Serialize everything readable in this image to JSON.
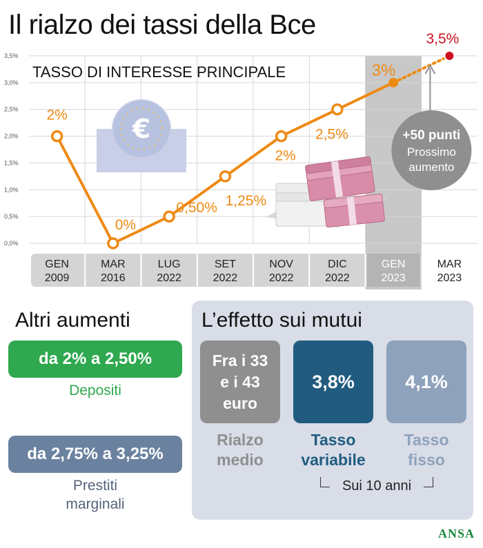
{
  "title": "Il rialzo dei tassi della Bce",
  "chart_data": {
    "type": "line",
    "subtitle": "TASSO DI INTERESSE PRINCIPALE",
    "categories": [
      {
        "line1": "GEN",
        "line2": "2009"
      },
      {
        "line1": "MAR",
        "line2": "2016"
      },
      {
        "line1": "LUG",
        "line2": "2022"
      },
      {
        "line1": "SET",
        "line2": "2022"
      },
      {
        "line1": "NOV",
        "line2": "2022"
      },
      {
        "line1": "DIC",
        "line2": "2022"
      },
      {
        "line1": "GEN",
        "line2": "2023"
      },
      {
        "line1": "MAR",
        "line2": "2023"
      }
    ],
    "values": [
      2.0,
      0.0,
      0.5,
      1.25,
      2.0,
      2.5,
      3.0,
      3.5
    ],
    "value_labels": [
      "2%",
      "0%",
      "0,50%",
      "1,25%",
      "2%",
      "2,5%",
      "3%",
      "3,5%"
    ],
    "projected_from_index": 6,
    "ylim": [
      0,
      3.5
    ],
    "yticks": [
      0,
      0.5,
      1.0,
      1.5,
      2.0,
      2.5,
      3.0,
      3.5
    ],
    "ytick_labels": [
      "0,0%",
      "0,5%",
      "1,0%",
      "1,5%",
      "2,0%",
      "2,5%",
      "3,0%",
      "3,5%"
    ],
    "grid": true,
    "highlight_index": 6,
    "annotation": {
      "line1": "+50 punti",
      "line2": "Prossimo",
      "line3": "aumento"
    },
    "colors": {
      "line": "#ee8a14",
      "projected": "#cc1020",
      "highlight": "#c8c8c8",
      "axis_band": "#d4d4d4",
      "annotation_bg": "#8f8f8f"
    },
    "icons": [
      "euro-symbol-icon",
      "euro-banknotes-icon"
    ]
  },
  "altri_aumenti": {
    "title": "Altri aumenti",
    "items": [
      {
        "value": "da 2% a 2,50%",
        "label_lines": [
          "Depositi"
        ],
        "color": "#2fa84f",
        "label_color": "#2fa84f"
      },
      {
        "value": "da 2,75% a 3,25%",
        "label_lines": [
          "Prestiti",
          "marginali"
        ],
        "color": "#6a82a0",
        "label_color": "#55637a"
      }
    ]
  },
  "mutui": {
    "title": "L’effetto sui mutui",
    "boxes": [
      {
        "value_lines": [
          "Fra i 33",
          "e i 43",
          "euro"
        ],
        "label_lines": [
          "Rialzo",
          "medio"
        ],
        "color": "#8f8f8f",
        "label_color": "#8f8f8f"
      },
      {
        "value_lines": [
          "3,8%"
        ],
        "label_lines": [
          "Tasso",
          "variabile"
        ],
        "color": "#215c80",
        "label_color": "#215c80"
      },
      {
        "value_lines": [
          "4,1%"
        ],
        "label_lines": [
          "Tasso",
          "fisso"
        ],
        "color": "#8fa2bc",
        "label_color": "#8fa2bc"
      }
    ],
    "bracket_label": "Sui 10 anni"
  },
  "source": "ANSA"
}
